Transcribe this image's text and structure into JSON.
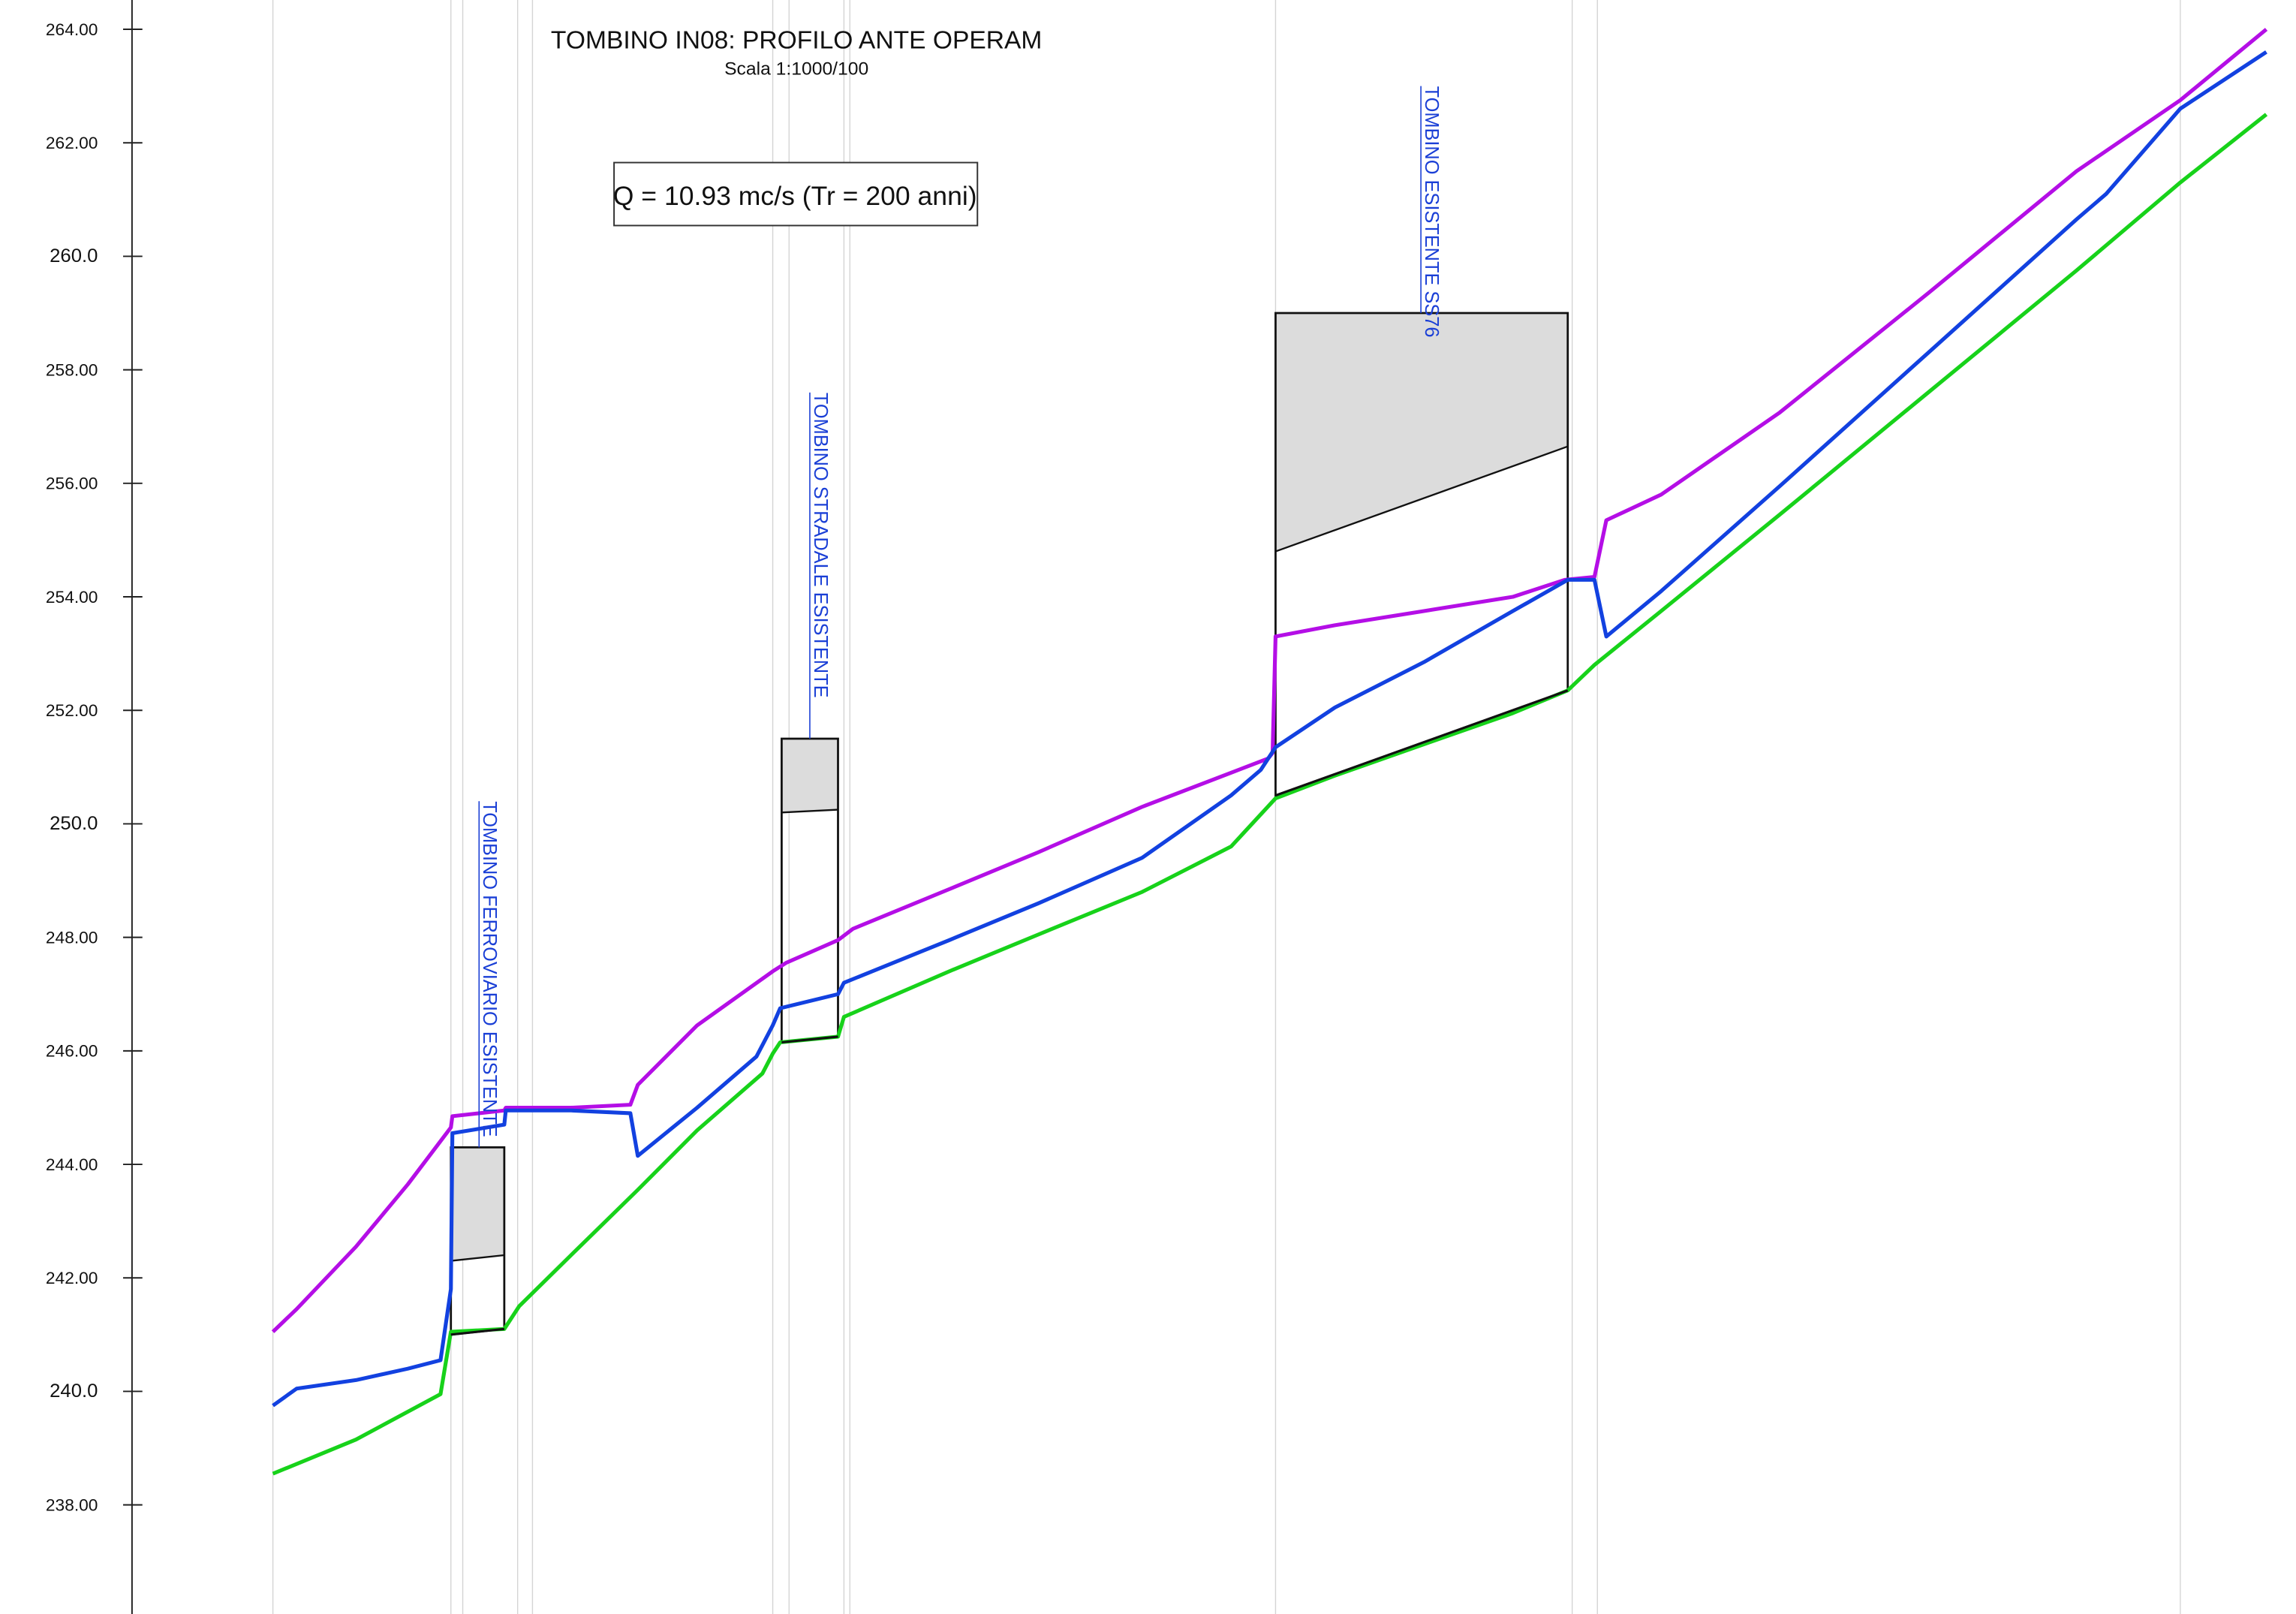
{
  "title": "TOMBINO IN08: PROFILO ANTE OPERAM",
  "subtitle": "Scala 1:1000/100",
  "annotation": "Q = 10.93 mc/s (Tr = 200 anni)",
  "chart_data": {
    "type": "line",
    "ylim": [
      236.7,
      264.9
    ],
    "xlim": [
      0,
      1548
    ],
    "y_ticks": [
      "238.00",
      "240.0",
      "242.00",
      "244.00",
      "246.00",
      "248.00",
      "250.0",
      "252.00",
      "254.00",
      "256.00",
      "258.00",
      "260.0",
      "262.00",
      "264.00"
    ],
    "y_tick_values": [
      238,
      240,
      242,
      244,
      246,
      248,
      250,
      252,
      254,
      256,
      258,
      260,
      262,
      264
    ],
    "colors": {
      "bed": "#17d21a",
      "water": "#1241e0",
      "energy": "#b40ee6",
      "struct_fill": "#dcdcdc",
      "stations": "#d4d4d4",
      "label": "#1a3fd6"
    },
    "stations": [
      184,
      304,
      312,
      349,
      359,
      521,
      532,
      569,
      573,
      860,
      1060,
      1077,
      1470
    ],
    "series": [
      {
        "key": "energy",
        "points": [
          [
            184,
            241.05
          ],
          [
            200,
            241.45
          ],
          [
            240,
            242.55
          ],
          [
            275,
            243.65
          ],
          [
            304,
            244.65
          ],
          [
            305,
            244.85
          ],
          [
            340,
            244.95
          ],
          [
            341,
            245.0
          ],
          [
            350,
            245.0
          ],
          [
            385,
            245.0
          ],
          [
            425,
            245.05
          ],
          [
            430,
            245.4
          ],
          [
            470,
            246.45
          ],
          [
            521,
            247.4
          ],
          [
            530,
            247.55
          ],
          [
            565,
            247.95
          ],
          [
            575,
            248.15
          ],
          [
            640,
            248.85
          ],
          [
            700,
            249.5
          ],
          [
            770,
            250.3
          ],
          [
            830,
            250.9
          ],
          [
            855,
            251.15
          ],
          [
            858,
            251.25
          ],
          [
            860,
            253.3
          ],
          [
            900,
            253.5
          ],
          [
            960,
            253.75
          ],
          [
            1020,
            254.0
          ],
          [
            1055,
            254.3
          ],
          [
            1075,
            254.35
          ],
          [
            1083,
            255.35
          ],
          [
            1120,
            255.8
          ],
          [
            1200,
            257.25
          ],
          [
            1300,
            259.35
          ],
          [
            1400,
            261.5
          ],
          [
            1470,
            262.75
          ],
          [
            1528,
            264.0
          ]
        ]
      },
      {
        "key": "water",
        "points": [
          [
            184,
            239.75
          ],
          [
            200,
            240.05
          ],
          [
            240,
            240.2
          ],
          [
            275,
            240.4
          ],
          [
            297,
            240.55
          ],
          [
            304,
            241.8
          ],
          [
            305,
            244.55
          ],
          [
            340,
            244.7
          ],
          [
            341,
            244.95
          ],
          [
            350,
            244.95
          ],
          [
            385,
            244.95
          ],
          [
            425,
            244.9
          ],
          [
            430,
            244.15
          ],
          [
            470,
            245.0
          ],
          [
            510,
            245.9
          ],
          [
            521,
            246.45
          ],
          [
            526,
            246.75
          ],
          [
            565,
            247.0
          ],
          [
            569,
            247.2
          ],
          [
            640,
            247.95
          ],
          [
            700,
            248.6
          ],
          [
            770,
            249.4
          ],
          [
            830,
            250.5
          ],
          [
            850,
            250.95
          ],
          [
            860,
            251.35
          ],
          [
            900,
            252.05
          ],
          [
            960,
            252.85
          ],
          [
            1020,
            253.75
          ],
          [
            1057,
            254.3
          ],
          [
            1075,
            254.3
          ],
          [
            1083,
            253.3
          ],
          [
            1120,
            254.1
          ],
          [
            1200,
            255.95
          ],
          [
            1300,
            258.3
          ],
          [
            1400,
            260.65
          ],
          [
            1420,
            261.1
          ],
          [
            1470,
            262.6
          ],
          [
            1528,
            263.6
          ]
        ]
      },
      {
        "key": "bed",
        "points": [
          [
            184,
            238.55
          ],
          [
            240,
            239.15
          ],
          [
            297,
            239.95
          ],
          [
            304,
            241.05
          ],
          [
            340,
            241.1
          ],
          [
            350,
            241.5
          ],
          [
            385,
            242.4
          ],
          [
            430,
            243.55
          ],
          [
            470,
            244.6
          ],
          [
            514,
            245.6
          ],
          [
            521,
            245.95
          ],
          [
            526,
            246.15
          ],
          [
            565,
            246.25
          ],
          [
            569,
            246.6
          ],
          [
            640,
            247.4
          ],
          [
            700,
            248.05
          ],
          [
            770,
            248.8
          ],
          [
            830,
            249.6
          ],
          [
            860,
            250.45
          ],
          [
            900,
            250.85
          ],
          [
            960,
            251.4
          ],
          [
            1020,
            251.95
          ],
          [
            1057,
            252.35
          ],
          [
            1075,
            252.8
          ],
          [
            1120,
            253.75
          ],
          [
            1200,
            255.45
          ],
          [
            1300,
            257.6
          ],
          [
            1400,
            259.75
          ],
          [
            1470,
            261.3
          ],
          [
            1528,
            262.5
          ]
        ]
      }
    ],
    "structures": [
      {
        "name": "TOMBINO FERROVIARIO ESISTENTE",
        "x0": 304,
        "x1": 340,
        "top": 244.3,
        "deck_left": 242.3,
        "deck_right": 242.4,
        "bot_left": 241.0,
        "bot_right": 241.1,
        "label_x": 323,
        "label_top": 250.4,
        "label_bottom": 244.3
      },
      {
        "name": "TOMBINO STRADALE ESISTENTE",
        "x0": 527,
        "x1": 565,
        "top": 251.5,
        "deck_left": 250.2,
        "deck_right": 250.25,
        "bot_left": 246.15,
        "bot_right": 246.25,
        "label_x": 546,
        "label_top": 257.6,
        "label_bottom": 251.5
      },
      {
        "name": "TOMBINO ESISTENTE SS76",
        "x0": 860,
        "x1": 1057,
        "top": 259.0,
        "deck_left": 254.8,
        "deck_right": 256.65,
        "bot_left": 250.5,
        "bot_right": 252.35,
        "label_x": 958,
        "label_top": 263.0,
        "label_bottom": 259.0
      }
    ]
  }
}
